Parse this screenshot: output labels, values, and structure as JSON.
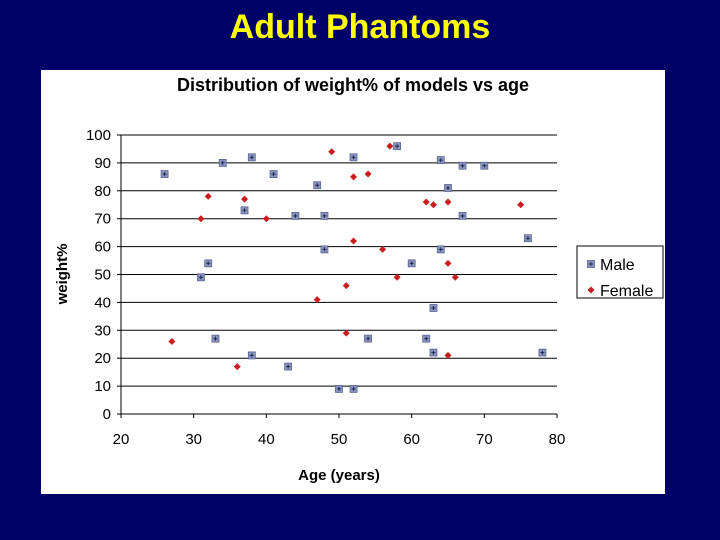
{
  "slide": {
    "title": "Adult Phantoms"
  },
  "colors": {
    "background": "#000066",
    "title": "#ffff00",
    "male": "#8a96c0",
    "female": "#c81e1e"
  },
  "chart_data": {
    "type": "scatter",
    "title": "Distribution of weight% of models vs age",
    "xlabel": "Age (years)",
    "ylabel": "weight%",
    "xlim": [
      20,
      80
    ],
    "ylim": [
      0,
      100
    ],
    "xticks": [
      "20",
      "30",
      "40",
      "50",
      "60",
      "70",
      "80"
    ],
    "yticks": [
      "0",
      "10",
      "20",
      "30",
      "40",
      "50",
      "60",
      "70",
      "80",
      "90",
      "100"
    ],
    "grid": "horizontal",
    "legend": "right",
    "series": [
      {
        "name": "Male",
        "marker": "square",
        "color": "#8a96c0",
        "points": [
          [
            26,
            86
          ],
          [
            31,
            49
          ],
          [
            32,
            54
          ],
          [
            33,
            27
          ],
          [
            34,
            90
          ],
          [
            37,
            73
          ],
          [
            38,
            92
          ],
          [
            38,
            21
          ],
          [
            41,
            86
          ],
          [
            43,
            17
          ],
          [
            44,
            71
          ],
          [
            47,
            82
          ],
          [
            48,
            71
          ],
          [
            48,
            59
          ],
          [
            50,
            9
          ],
          [
            52,
            9
          ],
          [
            52,
            92
          ],
          [
            54,
            27
          ],
          [
            58,
            96
          ],
          [
            60,
            54
          ],
          [
            62,
            27
          ],
          [
            63,
            22
          ],
          [
            63,
            38
          ],
          [
            64,
            59
          ],
          [
            64,
            91
          ],
          [
            65,
            81
          ],
          [
            67,
            89
          ],
          [
            67,
            71
          ],
          [
            70,
            89
          ],
          [
            76,
            63
          ],
          [
            78,
            22
          ]
        ]
      },
      {
        "name": "Female",
        "marker": "diamond",
        "color": "#c81e1e",
        "points": [
          [
            27,
            26
          ],
          [
            31,
            70
          ],
          [
            32,
            78
          ],
          [
            36,
            17
          ],
          [
            37,
            77
          ],
          [
            40,
            70
          ],
          [
            47,
            41
          ],
          [
            49,
            94
          ],
          [
            51,
            46
          ],
          [
            51,
            29
          ],
          [
            52,
            85
          ],
          [
            52,
            62
          ],
          [
            54,
            86
          ],
          [
            56,
            59
          ],
          [
            57,
            96
          ],
          [
            58,
            49
          ],
          [
            62,
            76
          ],
          [
            63,
            75
          ],
          [
            65,
            54
          ],
          [
            65,
            76
          ],
          [
            65,
            21
          ],
          [
            66,
            49
          ],
          [
            75,
            75
          ]
        ]
      }
    ]
  }
}
